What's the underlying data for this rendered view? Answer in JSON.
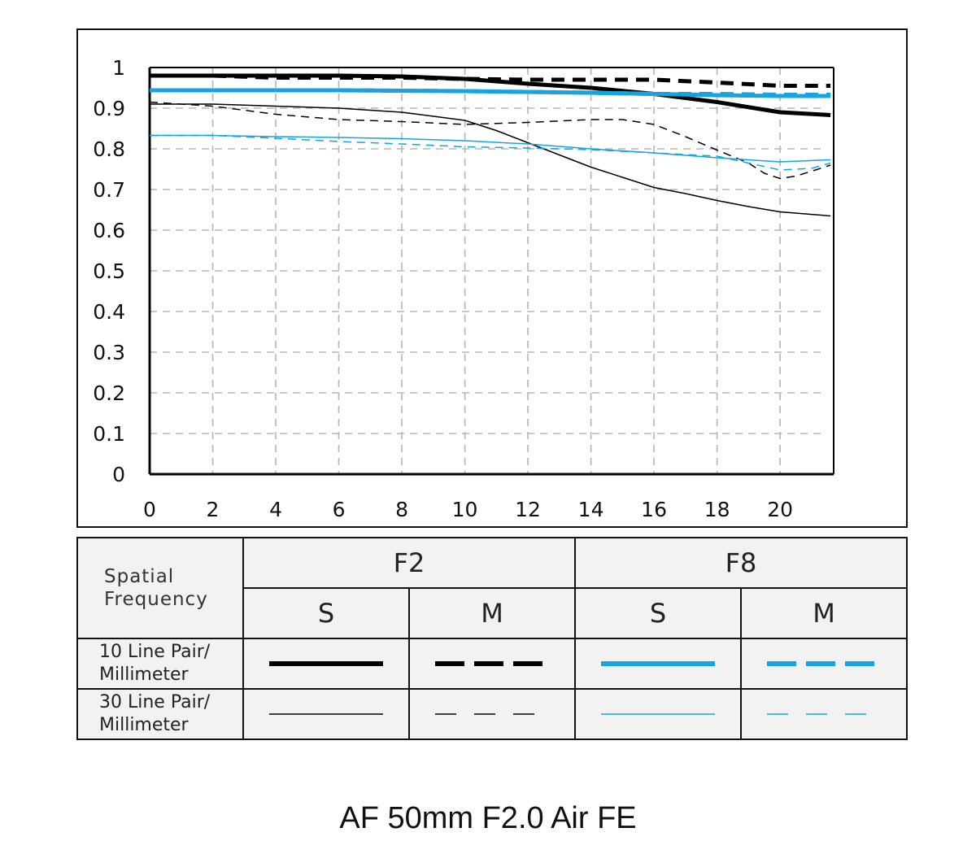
{
  "chart_data": {
    "type": "line",
    "title": "",
    "xlabel": "",
    "ylabel": "",
    "xlim": [
      0,
      21.7
    ],
    "ylim": [
      0,
      1
    ],
    "x_ticks": [
      "0",
      "2",
      "4",
      "6",
      "8",
      "10",
      "12",
      "14",
      "16",
      "18",
      "20"
    ],
    "y_ticks": [
      "0",
      "0.1",
      "0.2",
      "0.3",
      "0.4",
      "0.5",
      "0.6",
      "0.7",
      "0.8",
      "0.9",
      "1"
    ],
    "grid": true,
    "series": [
      {
        "aperture": "F2",
        "orientation": "S",
        "frequency": "10",
        "color": "#000000",
        "dash": "solid",
        "weight": "thick",
        "x": [
          0,
          2,
          4,
          6,
          8,
          10,
          12,
          14,
          16,
          18,
          20,
          21.6
        ],
        "y": [
          0.98,
          0.98,
          0.98,
          0.98,
          0.978,
          0.972,
          0.96,
          0.95,
          0.935,
          0.915,
          0.89,
          0.883
        ]
      },
      {
        "aperture": "F2",
        "orientation": "M",
        "frequency": "10",
        "color": "#000000",
        "dash": "dashed",
        "weight": "thick",
        "x": [
          0,
          2,
          4,
          6,
          8,
          10,
          12,
          14,
          16,
          18,
          20,
          21.6
        ],
        "y": [
          0.98,
          0.98,
          0.975,
          0.975,
          0.975,
          0.972,
          0.97,
          0.97,
          0.97,
          0.963,
          0.955,
          0.955
        ]
      },
      {
        "aperture": "F8",
        "orientation": "S",
        "frequency": "10",
        "color": "#15a4e0",
        "dash": "solid",
        "weight": "thick",
        "x": [
          0,
          2,
          4,
          6,
          8,
          10,
          12,
          14,
          16,
          18,
          20,
          21.6
        ],
        "y": [
          0.944,
          0.944,
          0.944,
          0.944,
          0.943,
          0.942,
          0.94,
          0.938,
          0.935,
          0.932,
          0.93,
          0.93
        ]
      },
      {
        "aperture": "F8",
        "orientation": "M",
        "frequency": "10",
        "color": "#15a4e0",
        "dash": "dashed",
        "weight": "thick",
        "x": [
          0,
          2,
          4,
          6,
          8,
          10,
          12,
          14,
          16,
          18,
          20,
          21.6
        ],
        "y": [
          0.944,
          0.944,
          0.944,
          0.944,
          0.943,
          0.942,
          0.94,
          0.938,
          0.935,
          0.935,
          0.933,
          0.933
        ]
      },
      {
        "aperture": "F2",
        "orientation": "S",
        "frequency": "30",
        "color": "#000000",
        "dash": "solid",
        "weight": "thin",
        "x": [
          0,
          2,
          4,
          6,
          8,
          10,
          11,
          12,
          13,
          14,
          15,
          16,
          17,
          18,
          19,
          20,
          21.6
        ],
        "y": [
          0.91,
          0.91,
          0.905,
          0.9,
          0.89,
          0.87,
          0.845,
          0.815,
          0.785,
          0.755,
          0.73,
          0.705,
          0.69,
          0.673,
          0.658,
          0.645,
          0.635
        ]
      },
      {
        "aperture": "F2",
        "orientation": "M",
        "frequency": "30",
        "color": "#000000",
        "dash": "dashed",
        "weight": "thin",
        "x": [
          0,
          2,
          4,
          6,
          8,
          10,
          12,
          14,
          15,
          16,
          17,
          18,
          19,
          19.5,
          20,
          20.5,
          21,
          21.6
        ],
        "y": [
          0.915,
          0.905,
          0.885,
          0.872,
          0.867,
          0.86,
          0.865,
          0.872,
          0.872,
          0.86,
          0.83,
          0.797,
          0.765,
          0.74,
          0.727,
          0.733,
          0.745,
          0.76
        ]
      },
      {
        "aperture": "F8",
        "orientation": "S",
        "frequency": "30",
        "color": "#15a4e0",
        "dash": "solid",
        "weight": "thin",
        "x": [
          0,
          2,
          4,
          6,
          8,
          10,
          12,
          14,
          16,
          18,
          20,
          21.6
        ],
        "y": [
          0.833,
          0.833,
          0.83,
          0.828,
          0.825,
          0.82,
          0.812,
          0.8,
          0.79,
          0.778,
          0.768,
          0.773
        ]
      },
      {
        "aperture": "F8",
        "orientation": "M",
        "frequency": "30",
        "color": "#15a4e0",
        "dash": "dashed",
        "weight": "thin",
        "x": [
          0,
          2,
          4,
          6,
          8,
          10,
          12,
          14,
          16,
          18,
          19,
          20,
          21,
          21.6
        ],
        "y": [
          0.833,
          0.833,
          0.826,
          0.818,
          0.812,
          0.805,
          0.802,
          0.798,
          0.79,
          0.782,
          0.765,
          0.748,
          0.752,
          0.765
        ]
      }
    ]
  },
  "legend": {
    "corner": [
      "Spatial",
      "Frequency"
    ],
    "groups": [
      "F2",
      "F8"
    ],
    "orientations": [
      "S",
      "M",
      "S",
      "M"
    ],
    "rows": [
      {
        "label": [
          "10 Line Pair/",
          "Millimeter"
        ],
        "weight": "thick"
      },
      {
        "label": [
          "30 Line Pair/",
          "Millimeter"
        ],
        "weight": "thin"
      }
    ],
    "colors": [
      "#000000",
      "#000000",
      "#15a4e0",
      "#15a4e0"
    ],
    "dashes": [
      "solid",
      "dashed",
      "solid",
      "dashed"
    ]
  },
  "product_title": "AF 50mm F2.0 Air FE"
}
